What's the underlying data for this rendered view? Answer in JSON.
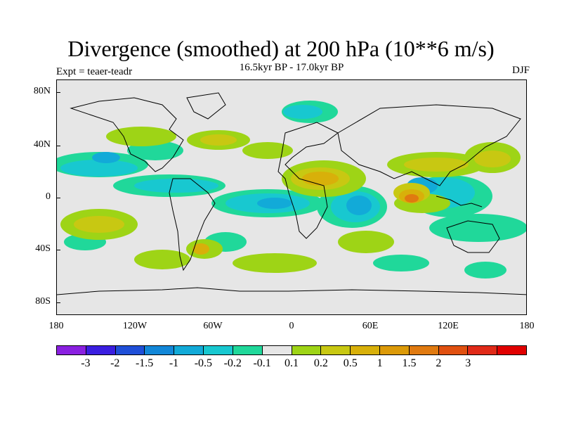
{
  "title": "Divergence (smoothed) at 200 hPa (10**6 m/s)",
  "subtitle": "16.5kyr BP - 17.0kyr BP",
  "experiment": "Expt = teaer-teadr",
  "season": "DJF",
  "y_axis_labels": [
    "80N",
    "40N",
    "0",
    "40S",
    "80S"
  ],
  "x_axis_labels": [
    "180",
    "120W",
    "60W",
    "0",
    "60E",
    "120E",
    "180"
  ],
  "colorbar": {
    "colors": [
      "#8a20e0",
      "#3a1ee0",
      "#1f4fd8",
      "#1287d8",
      "#12aad8",
      "#18c8d0",
      "#20d89a",
      "#e6e6e6",
      "#9ed416",
      "#c8c812",
      "#d8b00a",
      "#dc9a08",
      "#e07a10",
      "#e05010",
      "#e02a18",
      "#e00000"
    ],
    "labels": [
      "-3",
      "-2",
      "-1.5",
      "-1",
      "-0.5",
      "-0.2",
      "-0.1",
      "0.1",
      "0.2",
      "0.5",
      "1",
      "1.5",
      "2",
      "3"
    ]
  }
}
